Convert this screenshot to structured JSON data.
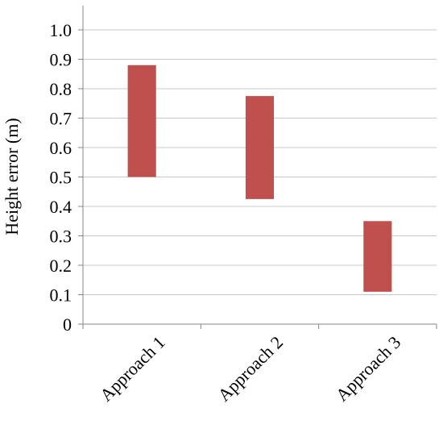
{
  "chart_data": {
    "type": "bar",
    "subtype": "floating-range",
    "categories": [
      "Approach 1",
      "Approach 2",
      "Approach 3"
    ],
    "series": [
      {
        "ranges": [
          [
            0.5,
            0.88
          ],
          [
            0.425,
            0.775
          ],
          [
            0.11,
            0.35
          ]
        ]
      }
    ],
    "ylabel": "Height error (m)",
    "ylim": [
      0,
      1.0
    ],
    "yticks": [
      "0",
      "0.1",
      "0.2",
      "0.3",
      "0.4",
      "0.5",
      "0.6",
      "0.7",
      "0.8",
      "0.9",
      "1.0"
    ],
    "grid": true,
    "bar_color": "#c0504d",
    "grid_color": "#c8c8c8"
  }
}
